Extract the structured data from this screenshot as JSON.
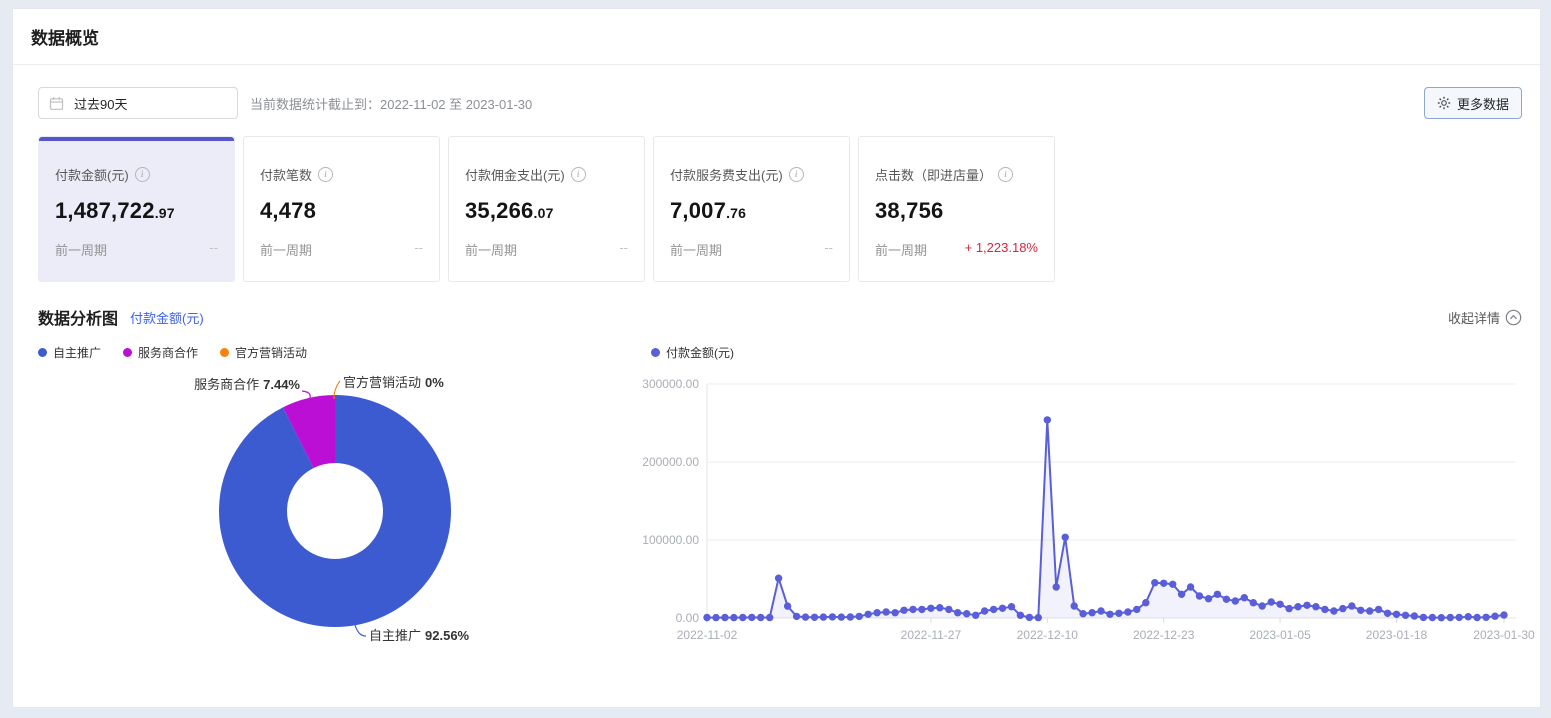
{
  "page": {
    "title": "数据概览"
  },
  "toolbar": {
    "date_range": "过去90天",
    "stats_note": "当前数据统计截止到：2022-11-02 至 2023-01-30",
    "more_data_label": "更多数据"
  },
  "cards": [
    {
      "title": "付款金额(元)",
      "value_int": "1,487,722",
      "value_dec": ".97",
      "prev_label": "前一周期",
      "prev_value": "--"
    },
    {
      "title": "付款笔数",
      "value_int": "4,478",
      "value_dec": "",
      "prev_label": "前一周期",
      "prev_value": "--"
    },
    {
      "title": "付款佣金支出(元)",
      "value_int": "35,266",
      "value_dec": ".07",
      "prev_label": "前一周期",
      "prev_value": "--"
    },
    {
      "title": "付款服务费支出(元)",
      "value_int": "7,007",
      "value_dec": ".76",
      "prev_label": "前一周期",
      "prev_value": "--"
    },
    {
      "title": "点击数（即进店量）",
      "value_int": "38,756",
      "value_dec": "",
      "prev_label": "前一周期",
      "prev_value": "+ 1,223.18%"
    }
  ],
  "analysis": {
    "title": "数据分析图",
    "metric_link": "付款金额(元)",
    "collapse_label": "收起详情"
  },
  "colors": {
    "accent": "#5557c8",
    "link_blue": "#3d63f2",
    "up_red": "#d9253d",
    "pie_blue": "#3d5bd0",
    "pie_magenta": "#bb0fd6",
    "pie_orange": "#f5820d",
    "line_series": "#5a5ed8",
    "page_bg": "#e6ebf3"
  },
  "chart_data": [
    {
      "type": "pie",
      "donut": true,
      "title": "付款金额(元)",
      "labels": [
        "自主推广",
        "服务商合作",
        "官方营销活动"
      ],
      "values": [
        92.56,
        7.44,
        0
      ],
      "display_pcts": [
        "92.56%",
        "7.44%",
        "0%"
      ],
      "colors": [
        "#3d5bd0",
        "#bb0fd6",
        "#f5820d"
      ],
      "legend_position": "top-left"
    },
    {
      "type": "line",
      "name": "付款金额(元)",
      "color": "#5a5ed8",
      "area_fill": "rgba(90,94,216,0.08)",
      "ylim": [
        0,
        300000
      ],
      "y_ticks": [
        0,
        100000,
        200000,
        300000
      ],
      "y_tick_labels": [
        "0.00",
        "100000.00",
        "200000.00",
        "300000.00"
      ],
      "x_tick_labels": [
        "2022-11-02",
        "2022-11-27",
        "2022-12-10",
        "2022-12-23",
        "2023-01-05",
        "2023-01-18",
        "2023-01-30"
      ],
      "x_tick_days": [
        0,
        25,
        38,
        51,
        64,
        77,
        89
      ],
      "grid": true,
      "legend_position": "top-left",
      "values": [
        600,
        500,
        700,
        500,
        600,
        800,
        700,
        600,
        51000,
        15200,
        2000,
        1200,
        900,
        1100,
        1400,
        1100,
        1300,
        2000,
        4700,
        6800,
        7700,
        6800,
        9900,
        11000,
        11000,
        12400,
        13200,
        11000,
        6800,
        5500,
        3500,
        9000,
        11000,
        12400,
        14500,
        3500,
        800,
        500,
        254000,
        39700,
        103500,
        15400,
        5500,
        6800,
        9000,
        4700,
        6000,
        7700,
        11000,
        19600,
        45300,
        44500,
        43200,
        30400,
        39700,
        28200,
        24700,
        30400,
        24000,
        21800,
        26000,
        19600,
        15400,
        20500,
        17500,
        12000,
        14500,
        16300,
        14500,
        11000,
        9000,
        12000,
        15400,
        9900,
        9000,
        11000,
        6000,
        4700,
        3500,
        2600,
        800,
        600,
        400,
        600,
        800,
        1700,
        700,
        900,
        2300,
        3800
      ]
    }
  ]
}
